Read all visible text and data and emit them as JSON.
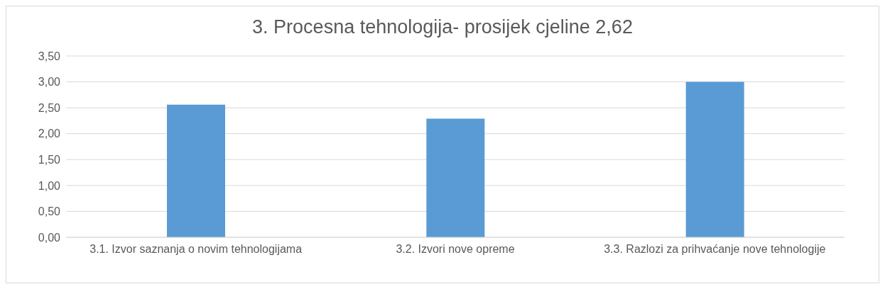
{
  "chart_data": {
    "type": "bar",
    "title": "3. Procesna tehnologija- prosijek cjeline 2,62",
    "categories": [
      "3.1. Izvor saznanja o novim tehnologijama",
      "3.2. Izvori nove opreme",
      "3.3. Razlozi za prihvaćanje nove tehnologije"
    ],
    "values": [
      2.56,
      2.29,
      3.0
    ],
    "color": "#5b9bd5",
    "ylim": [
      0,
      3.5
    ],
    "yticks": [
      {
        "value": 0,
        "label": "0,00"
      },
      {
        "value": 0.5,
        "label": "0,50"
      },
      {
        "value": 1,
        "label": "1,00"
      },
      {
        "value": 1.5,
        "label": "1,50"
      },
      {
        "value": 2,
        "label": "2,00"
      },
      {
        "value": 2.5,
        "label": "2,50"
      },
      {
        "value": 3,
        "label": "3,00"
      },
      {
        "value": 3.5,
        "label": "3,50"
      }
    ],
    "grid": "y",
    "legend": false
  }
}
